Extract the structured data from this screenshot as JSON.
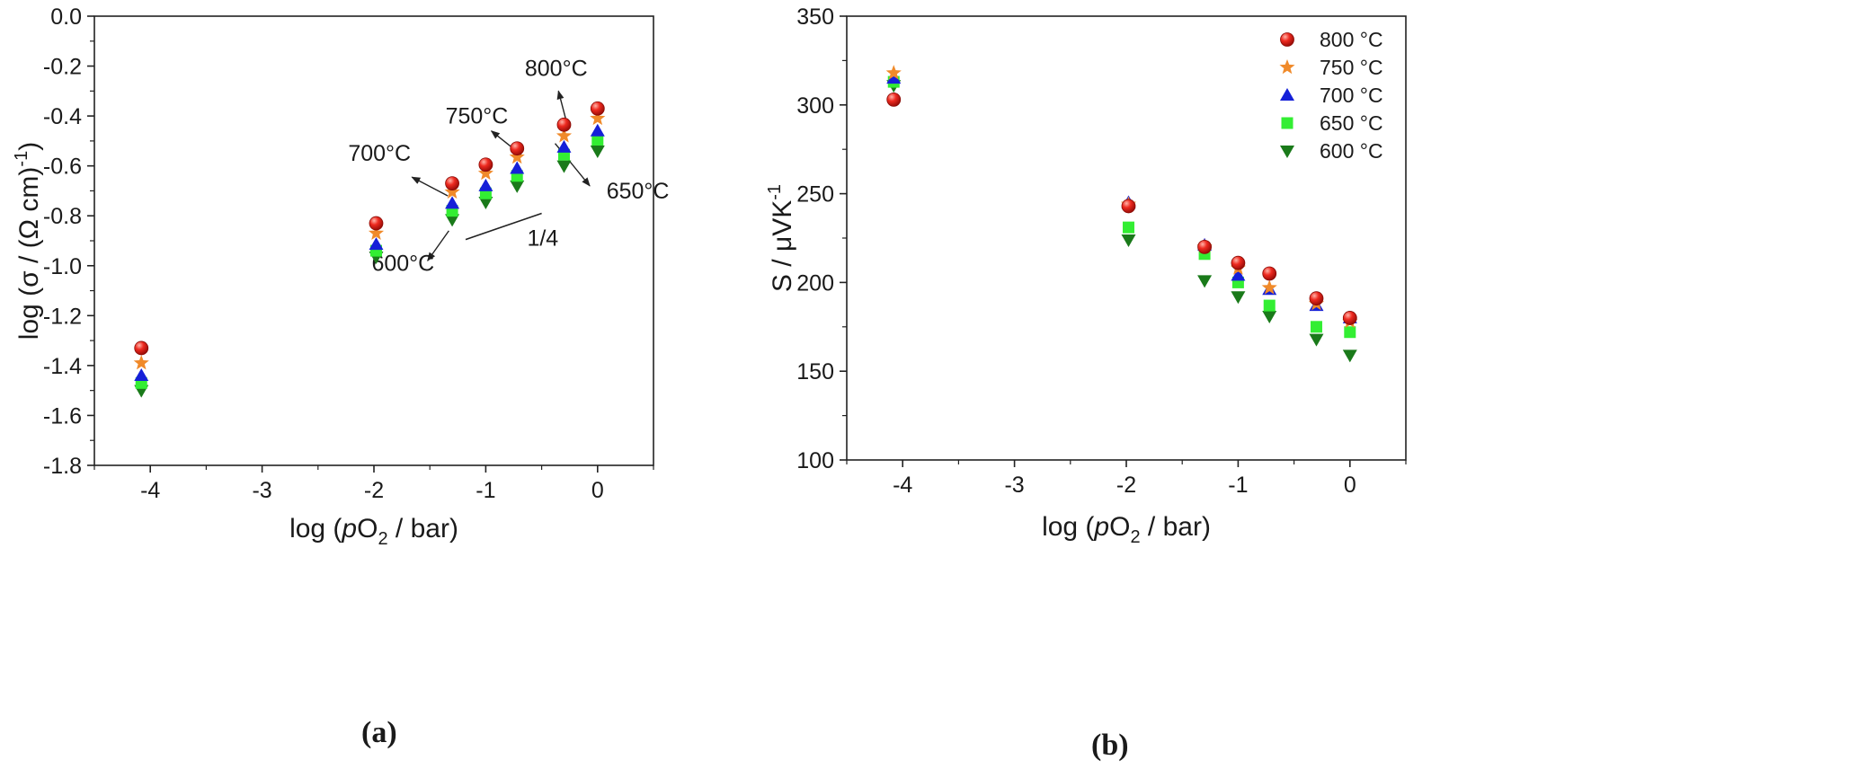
{
  "colors": {
    "800": "#e8201c",
    "750": "#f08a2a",
    "700": "#1520d8",
    "650": "#33ee33",
    "600": "#1a7a1a",
    "axis": "#222222"
  },
  "chart_data": [
    {
      "type": "scatter",
      "caption": "(a)",
      "xlabel": "log (pO2 / bar)",
      "ylabel": "log (σ / (Ω cm)-1)",
      "xlim": [
        -4.5,
        0.5
      ],
      "ylim": [
        -1.8,
        0.0
      ],
      "xticks": [
        -4,
        -3,
        -2,
        -1,
        0
      ],
      "yticks": [
        0.0,
        -0.2,
        -0.4,
        -0.6,
        -0.8,
        -1.0,
        -1.2,
        -1.4,
        -1.6,
        -1.8
      ],
      "ytick_labels": [
        "0.0",
        "-0.2",
        "-0.4",
        "-0.6",
        "-0.8",
        "-1.0",
        "-1.2",
        "-1.4",
        "-1.6",
        "-1.8"
      ],
      "x": [
        -4.08,
        -1.98,
        -1.3,
        -1.0,
        -0.72,
        -0.3,
        0.0
      ],
      "series": [
        {
          "name": "800 °C",
          "marker": "sphere",
          "values": [
            -1.33,
            -0.83,
            -0.67,
            -0.595,
            -0.53,
            -0.435,
            -0.37
          ]
        },
        {
          "name": "750 °C",
          "marker": "star",
          "values": [
            -1.39,
            -0.87,
            -0.705,
            -0.63,
            -0.565,
            -0.48,
            -0.41
          ]
        },
        {
          "name": "700 °C",
          "marker": "triangle-up",
          "values": [
            -1.44,
            -0.915,
            -0.75,
            -0.68,
            -0.61,
            -0.525,
            -0.46
          ]
        },
        {
          "name": "650 °C",
          "marker": "square",
          "values": [
            -1.47,
            -0.94,
            -0.78,
            -0.71,
            -0.64,
            -0.555,
            -0.495
          ]
        },
        {
          "name": "600 °C",
          "marker": "triangle-down",
          "values": [
            -1.5,
            -0.965,
            -0.815,
            -0.745,
            -0.68,
            -0.6,
            -0.54
          ]
        }
      ],
      "annotations": [
        {
          "text": "800°C",
          "x": -0.37,
          "y": -0.24
        },
        {
          "text": "750°C",
          "x": -1.08,
          "y": -0.43
        },
        {
          "text": "700°C",
          "x": -1.95,
          "y": -0.58
        },
        {
          "text": "650°C",
          "x": 0.36,
          "y": -0.73
        },
        {
          "text": "600°C",
          "x": -1.74,
          "y": -1.02
        },
        {
          "text": "1/4",
          "x": -0.49,
          "y": -0.92
        }
      ],
      "arrows": [
        {
          "from": [
            -0.28,
            -0.42
          ],
          "to": [
            -0.35,
            -0.3
          ]
        },
        {
          "from": [
            -0.67,
            -0.56
          ],
          "to": [
            -0.95,
            -0.46
          ]
        },
        {
          "from": [
            -1.34,
            -0.72
          ],
          "to": [
            -1.66,
            -0.645
          ]
        },
        {
          "from": [
            -0.38,
            -0.51
          ],
          "to": [
            -0.07,
            -0.68
          ]
        },
        {
          "from": [
            -1.33,
            -0.86
          ],
          "to": [
            -1.52,
            -0.98
          ]
        }
      ],
      "slope_line": {
        "from": [
          -1.18,
          -0.895
        ],
        "to": [
          -0.5,
          -0.79
        ]
      }
    },
    {
      "type": "scatter",
      "caption": "(b)",
      "xlabel": "log (pO2 / bar)",
      "ylabel": "S / μVK-1",
      "xlim": [
        -4.5,
        0.5
      ],
      "ylim": [
        100,
        350
      ],
      "xticks": [
        -4,
        -3,
        -2,
        -1,
        0
      ],
      "yticks": [
        100,
        150,
        200,
        250,
        300,
        350
      ],
      "ytick_labels": [
        "100",
        "150",
        "200",
        "250",
        "300",
        "350"
      ],
      "x": [
        -4.08,
        -1.98,
        -1.3,
        -1.0,
        -0.72,
        -0.3,
        0.0
      ],
      "series": [
        {
          "name": "800 °C",
          "marker": "sphere",
          "values": [
            303,
            243,
            220,
            211,
            205,
            191,
            180
          ]
        },
        {
          "name": "750 °C",
          "marker": "star",
          "values": [
            318,
            244,
            220,
            208,
            197,
            188,
            178
          ]
        },
        {
          "name": "700 °C",
          "marker": "triangle-up",
          "values": [
            315,
            245,
            221,
            204,
            196,
            187,
            180
          ]
        },
        {
          "name": "650 °C",
          "marker": "square",
          "values": [
            313,
            231,
            216,
            200,
            187,
            175,
            172
          ]
        },
        {
          "name": "600 °C",
          "marker": "triangle-down",
          "values": [
            311,
            224,
            201,
            192,
            181,
            168,
            159
          ]
        }
      ],
      "legend": {
        "position": "top-right",
        "entries": [
          "800 °C",
          "750 °C",
          "700 °C",
          "650 °C",
          "600 °C"
        ]
      }
    }
  ]
}
